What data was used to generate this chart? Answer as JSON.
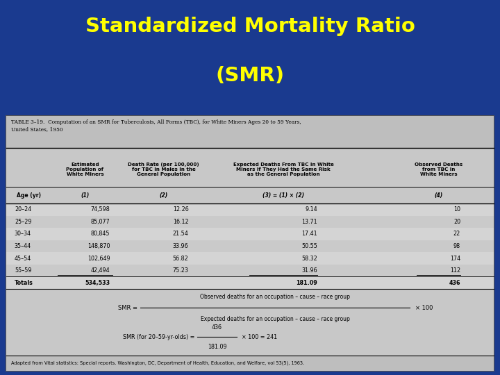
{
  "title_line1": "Standardized Mortality Ratio",
  "title_line2": "(SMR)",
  "title_color": "#FFFF00",
  "bg_color": "#1A3A8F",
  "table_caption": "TABLE 3–19.  Computation of an SMR for Tuberculosis, All Forms (TBC), for White Miners Ages 20 to 59 Years,\nUnited States, 1950",
  "col_h1": [
    "",
    "Estimated\nPopulation of\nWhite Miners",
    "Death Rate (per 100,000)\nfor TBC in Males in the\nGeneral Population",
    "Expected Deaths From TBC in White\nMiners if They Had the Same Risk\nas the General Population",
    "Observed Deaths\nfrom TBC in\nWhite Miners"
  ],
  "col_h2": [
    "Age (yr)",
    "(1)",
    "(2)",
    "(3) = (1) × (2)",
    "(4)"
  ],
  "rows": [
    [
      "20–24",
      "74,598",
      "12.26",
      "9.14",
      "10"
    ],
    [
      "25–29",
      "85,077",
      "16.12",
      "13.71",
      "20"
    ],
    [
      "30–34",
      "80,845",
      "21.54",
      "17.41",
      "22"
    ],
    [
      "35–44",
      "148,870",
      "33.96",
      "50.55",
      "98"
    ],
    [
      "45–54",
      "102,649",
      "56.82",
      "58.32",
      "174"
    ],
    [
      "55–59",
      "42,494",
      "75.23",
      "31.96",
      "112"
    ],
    [
      "Totals",
      "534,533",
      "",
      "181.09",
      "436"
    ]
  ],
  "formula1_num": "Observed deaths for an occupation – cause – race group",
  "formula1_den": "Expected deaths for an occupation – cause – race group",
  "formula1_rhs": "× 100",
  "formula2_lhs": "SMR (for 20–59-yr-olds) =",
  "formula2_num": "436",
  "formula2_den": "181.09",
  "formula2_rhs": "× 100 = 241",
  "footnote": "Adapted from Vital statistics: Special reports. Washington, DC, Department of Health, Education, and Welfare, vol 53(5), 1963."
}
